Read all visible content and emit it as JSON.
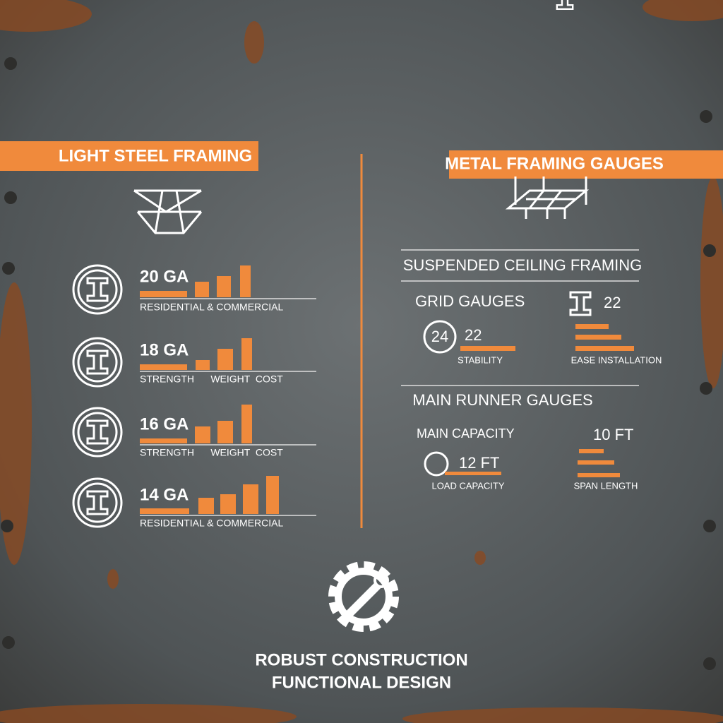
{
  "left": {
    "title": "LIGHT STEEL FRAMING",
    "items": [
      {
        "gauge": "20 GA",
        "caption": "RESIDENTIAL & COMMERCIAL"
      },
      {
        "gauge": "18 GA",
        "caption": "STRENGTH      WEIGHT  COST"
      },
      {
        "gauge": "16 GA",
        "caption": "STRENGTH      WEIGHT  COST"
      },
      {
        "gauge": "14 GA",
        "caption": "RESIDENTIAL & COMMERCIAL"
      }
    ]
  },
  "right": {
    "title": "METAL FRAMING GAUGES",
    "sections": [
      {
        "heading": "SUSPENDED CEILING FRAMING",
        "label": "GRID GAUGES",
        "icon_value": "22",
        "circle_value": "24",
        "bar_value": "22",
        "left_caption": "STABILITY",
        "right_caption": "EASE INSTALLATION"
      },
      {
        "heading": "MAIN RUNNER GAUGES",
        "label": "MAIN CAPACITY",
        "icon_value": "10 FT",
        "bar_value": "12 FT",
        "left_caption": "LOAD CAPACITY",
        "right_caption": "SPAN LENGTH"
      }
    ]
  },
  "footer": {
    "lines": [
      "ROBUST CONSTRUCTION",
      "FUNCTIONAL DESIGN"
    ]
  }
}
